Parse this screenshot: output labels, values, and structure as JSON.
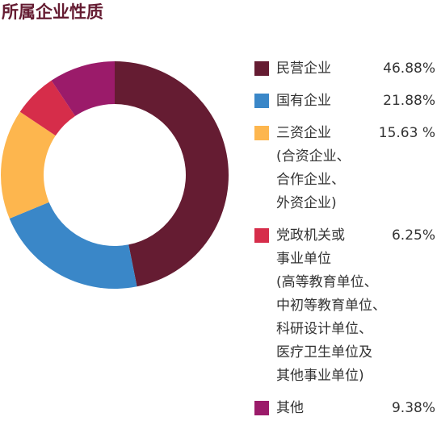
{
  "chart_data": {
    "type": "donut",
    "title": "所属企业性质",
    "series": [
      {
        "name": "民营企业",
        "color": "#651c32",
        "values": [
          46.88
        ],
        "value_labels": [
          "46.88%"
        ]
      },
      {
        "name": "国有企业",
        "color": "#3a87c8",
        "values": [
          21.88
        ],
        "value_labels": [
          "21.88%"
        ]
      },
      {
        "name": "三资企业\n(合资企业、\n合作企业、\n外资企业)",
        "color": "#fdb64e",
        "values": [
          15.63
        ],
        "value_labels": [
          "15.63 %"
        ]
      },
      {
        "name": "党政机关或\n事业单位\n(高等教育单位、\n中初等教育单位、\n科研设计单位、\n医疗卫生单位及\n其他事业单位)",
        "color": "#d62d4a",
        "values": [
          6.25
        ],
        "value_labels": [
          "6.25%"
        ]
      },
      {
        "name": "其他",
        "color": "#9b1b6a",
        "values": [
          9.38
        ],
        "value_labels": [
          "9.38%"
        ]
      }
    ]
  }
}
